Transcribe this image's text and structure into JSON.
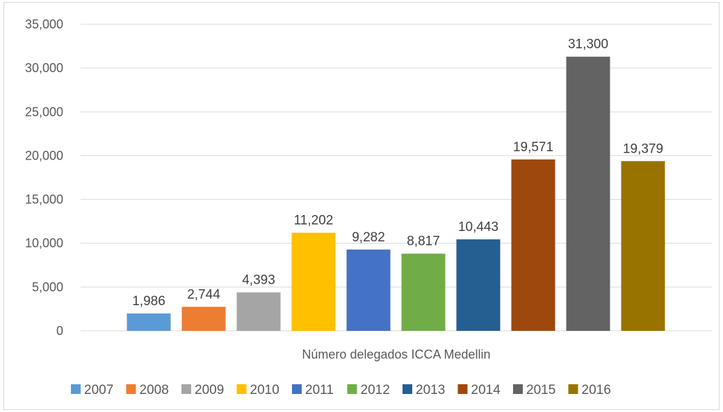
{
  "chart_data": {
    "type": "bar",
    "categories": [
      "Número delegados ICCA Medellin"
    ],
    "series": [
      {
        "name": "2007",
        "values": [
          1986
        ],
        "label": "1,986",
        "color": "#5b9bd5"
      },
      {
        "name": "2008",
        "values": [
          2744
        ],
        "label": "2,744",
        "color": "#ed7d31"
      },
      {
        "name": "2009",
        "values": [
          4393
        ],
        "label": "4,393",
        "color": "#a5a5a5"
      },
      {
        "name": "2010",
        "values": [
          11202
        ],
        "label": "11,202",
        "color": "#ffc000"
      },
      {
        "name": "2011",
        "values": [
          9282
        ],
        "label": "9,282",
        "color": "#4472c4"
      },
      {
        "name": "2012",
        "values": [
          8817
        ],
        "label": "8,817",
        "color": "#70ad47"
      },
      {
        "name": "2013",
        "values": [
          10443
        ],
        "label": "10,443",
        "color": "#255e91"
      },
      {
        "name": "2014",
        "values": [
          19571
        ],
        "label": "19,571",
        "color": "#9e480e"
      },
      {
        "name": "2015",
        "values": [
          31300
        ],
        "label": "31,300",
        "color": "#636363"
      },
      {
        "name": "2016",
        "values": [
          19379
        ],
        "label": "19,379",
        "color": "#997300"
      }
    ],
    "y_ticks": [
      "0",
      "5,000",
      "10,000",
      "15,000",
      "20,000",
      "25,000",
      "30,000",
      "35,000"
    ],
    "ylim": [
      0,
      35000
    ],
    "xlabel": "",
    "ylabel": "",
    "grid": true,
    "legend_position": "bottom"
  }
}
